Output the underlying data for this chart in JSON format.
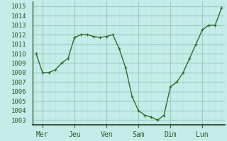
{
  "y_values": [
    1010,
    1008,
    1008,
    1008.3,
    1009,
    1009.5,
    1011.7,
    1012,
    1012,
    1011.8,
    1011.7,
    1011.8,
    1012,
    1010.5,
    1008.5,
    1005.5,
    1004,
    1003.5,
    1003.3,
    1003,
    1003.5,
    1006.5,
    1007,
    1008,
    1009.5,
    1011,
    1012.5,
    1013,
    1013,
    1014.8
  ],
  "n_points": 30,
  "day_tick_positions": [
    1,
    6,
    11,
    16,
    21,
    26
  ],
  "day_labels": [
    "Mer",
    "Jeu",
    "Ven",
    "Sam",
    "Dim",
    "Lun"
  ],
  "yticks": [
    1003,
    1004,
    1005,
    1006,
    1007,
    1008,
    1009,
    1010,
    1011,
    1012,
    1013,
    1014,
    1015
  ],
  "ylim": [
    1002.5,
    1015.5
  ],
  "xlim": [
    -0.5,
    29.5
  ],
  "line_color": "#2d6e2d",
  "marker_color": "#2d6e2d",
  "bg_color": "#c5ece8",
  "grid_major_color": "#9ecdc6",
  "grid_minor_color": "#b8e4de",
  "axis_line_color": "#3a5a3a",
  "tick_label_color": "#2d5a2d",
  "label_fontsize": 7,
  "ytick_fontsize": 6.5
}
